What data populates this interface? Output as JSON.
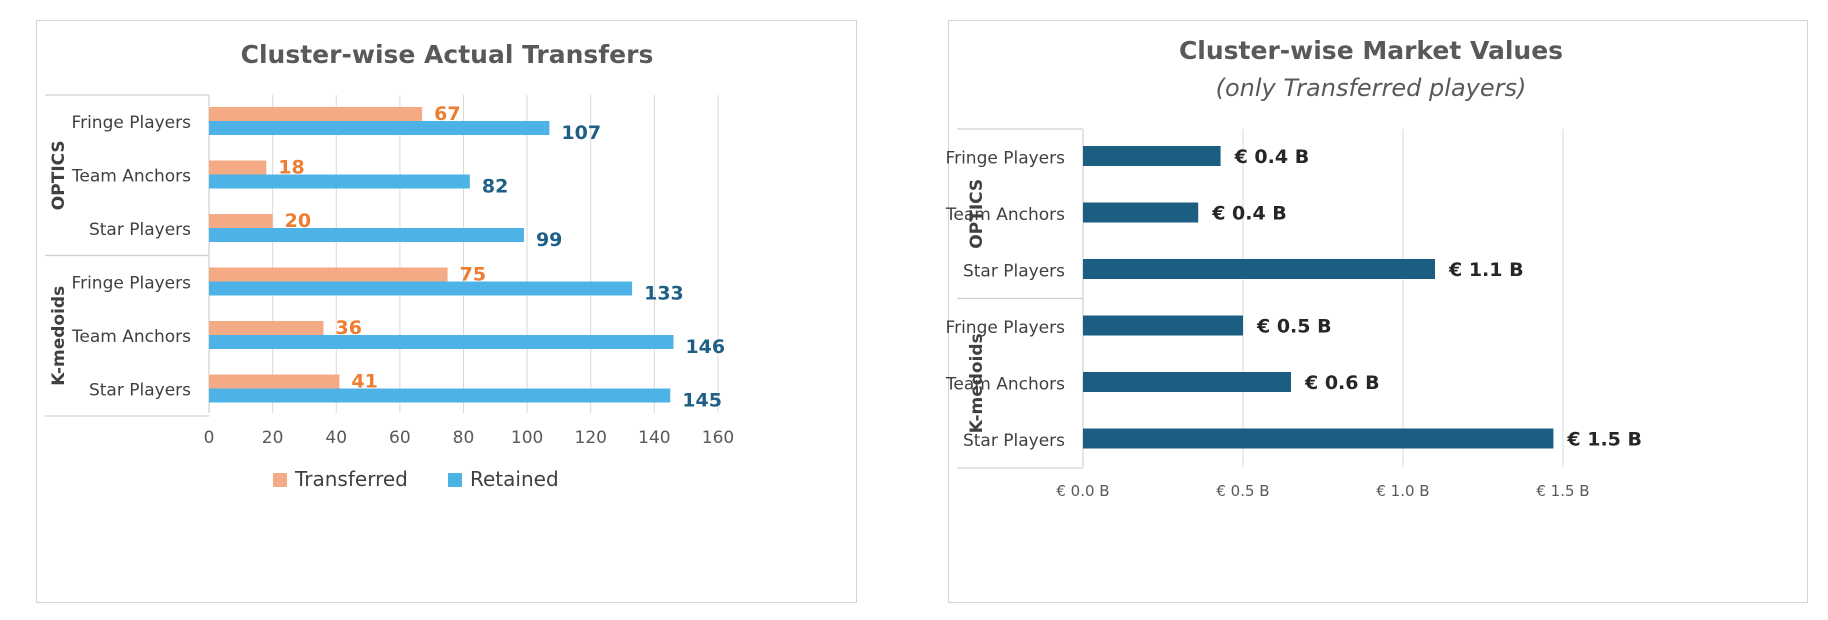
{
  "chart_data": [
    {
      "type": "bar",
      "orientation": "horizontal",
      "title": "Cluster-wise Actual Transfers",
      "groups": [
        {
          "name": "OPTICS",
          "categories": [
            "Fringe Players",
            "Team Anchors",
            "Star Players"
          ]
        },
        {
          "name": "K-medoids",
          "categories": [
            "Fringe Players",
            "Team Anchors",
            "Star Players"
          ]
        }
      ],
      "series": [
        {
          "name": "Transferred",
          "color": "#f4aa84",
          "label_color": "#ed7d31",
          "values": [
            67,
            18,
            20,
            75,
            36,
            41
          ],
          "labels": [
            "67",
            "18",
            "20",
            "75",
            "36",
            "41"
          ]
        },
        {
          "name": "Retained",
          "color": "#4db3e6",
          "label_color": "#1f5f86",
          "values": [
            107,
            82,
            99,
            133,
            146,
            145
          ],
          "labels": [
            "107",
            "82",
            "99",
            "133",
            "146",
            "145"
          ]
        }
      ],
      "xlim": [
        0,
        160
      ],
      "xticks": [
        0,
        20,
        40,
        60,
        80,
        100,
        120,
        140,
        160
      ],
      "xtick_labels": [
        "0",
        "20",
        "40",
        "60",
        "80",
        "100",
        "120",
        "140",
        "160"
      ],
      "grid": true,
      "legend": "bottom"
    },
    {
      "type": "bar",
      "orientation": "horizontal",
      "title": "Cluster-wise Market Values",
      "subtitle": "(only Transferred players)",
      "groups": [
        {
          "name": "OPTICS",
          "categories": [
            "Fringe Players",
            "Team Anchors",
            "Star Players"
          ]
        },
        {
          "name": "K-medoids",
          "categories": [
            "Fringe Players",
            "Team Anchors",
            "Star Players"
          ]
        }
      ],
      "series": [
        {
          "name": "",
          "color": "#1b5e82",
          "label_color": "#262626",
          "values": [
            0.43,
            0.36,
            1.1,
            0.5,
            0.65,
            1.47
          ],
          "labels": [
            "€ 0.4 B",
            "€ 0.4 B",
            "€ 1.1 B",
            "€ 0.5 B",
            "€ 0.6 B",
            "€ 1.5 B"
          ]
        }
      ],
      "xlim": [
        0,
        1.5
      ],
      "xticks": [
        0,
        0.5,
        1.0,
        1.5
      ],
      "xtick_labels": [
        "€ 0.0 B",
        "€ 0.5 B",
        "€ 1.0 B",
        "€ 1.5 B"
      ],
      "grid": true,
      "legend": "none"
    }
  ]
}
